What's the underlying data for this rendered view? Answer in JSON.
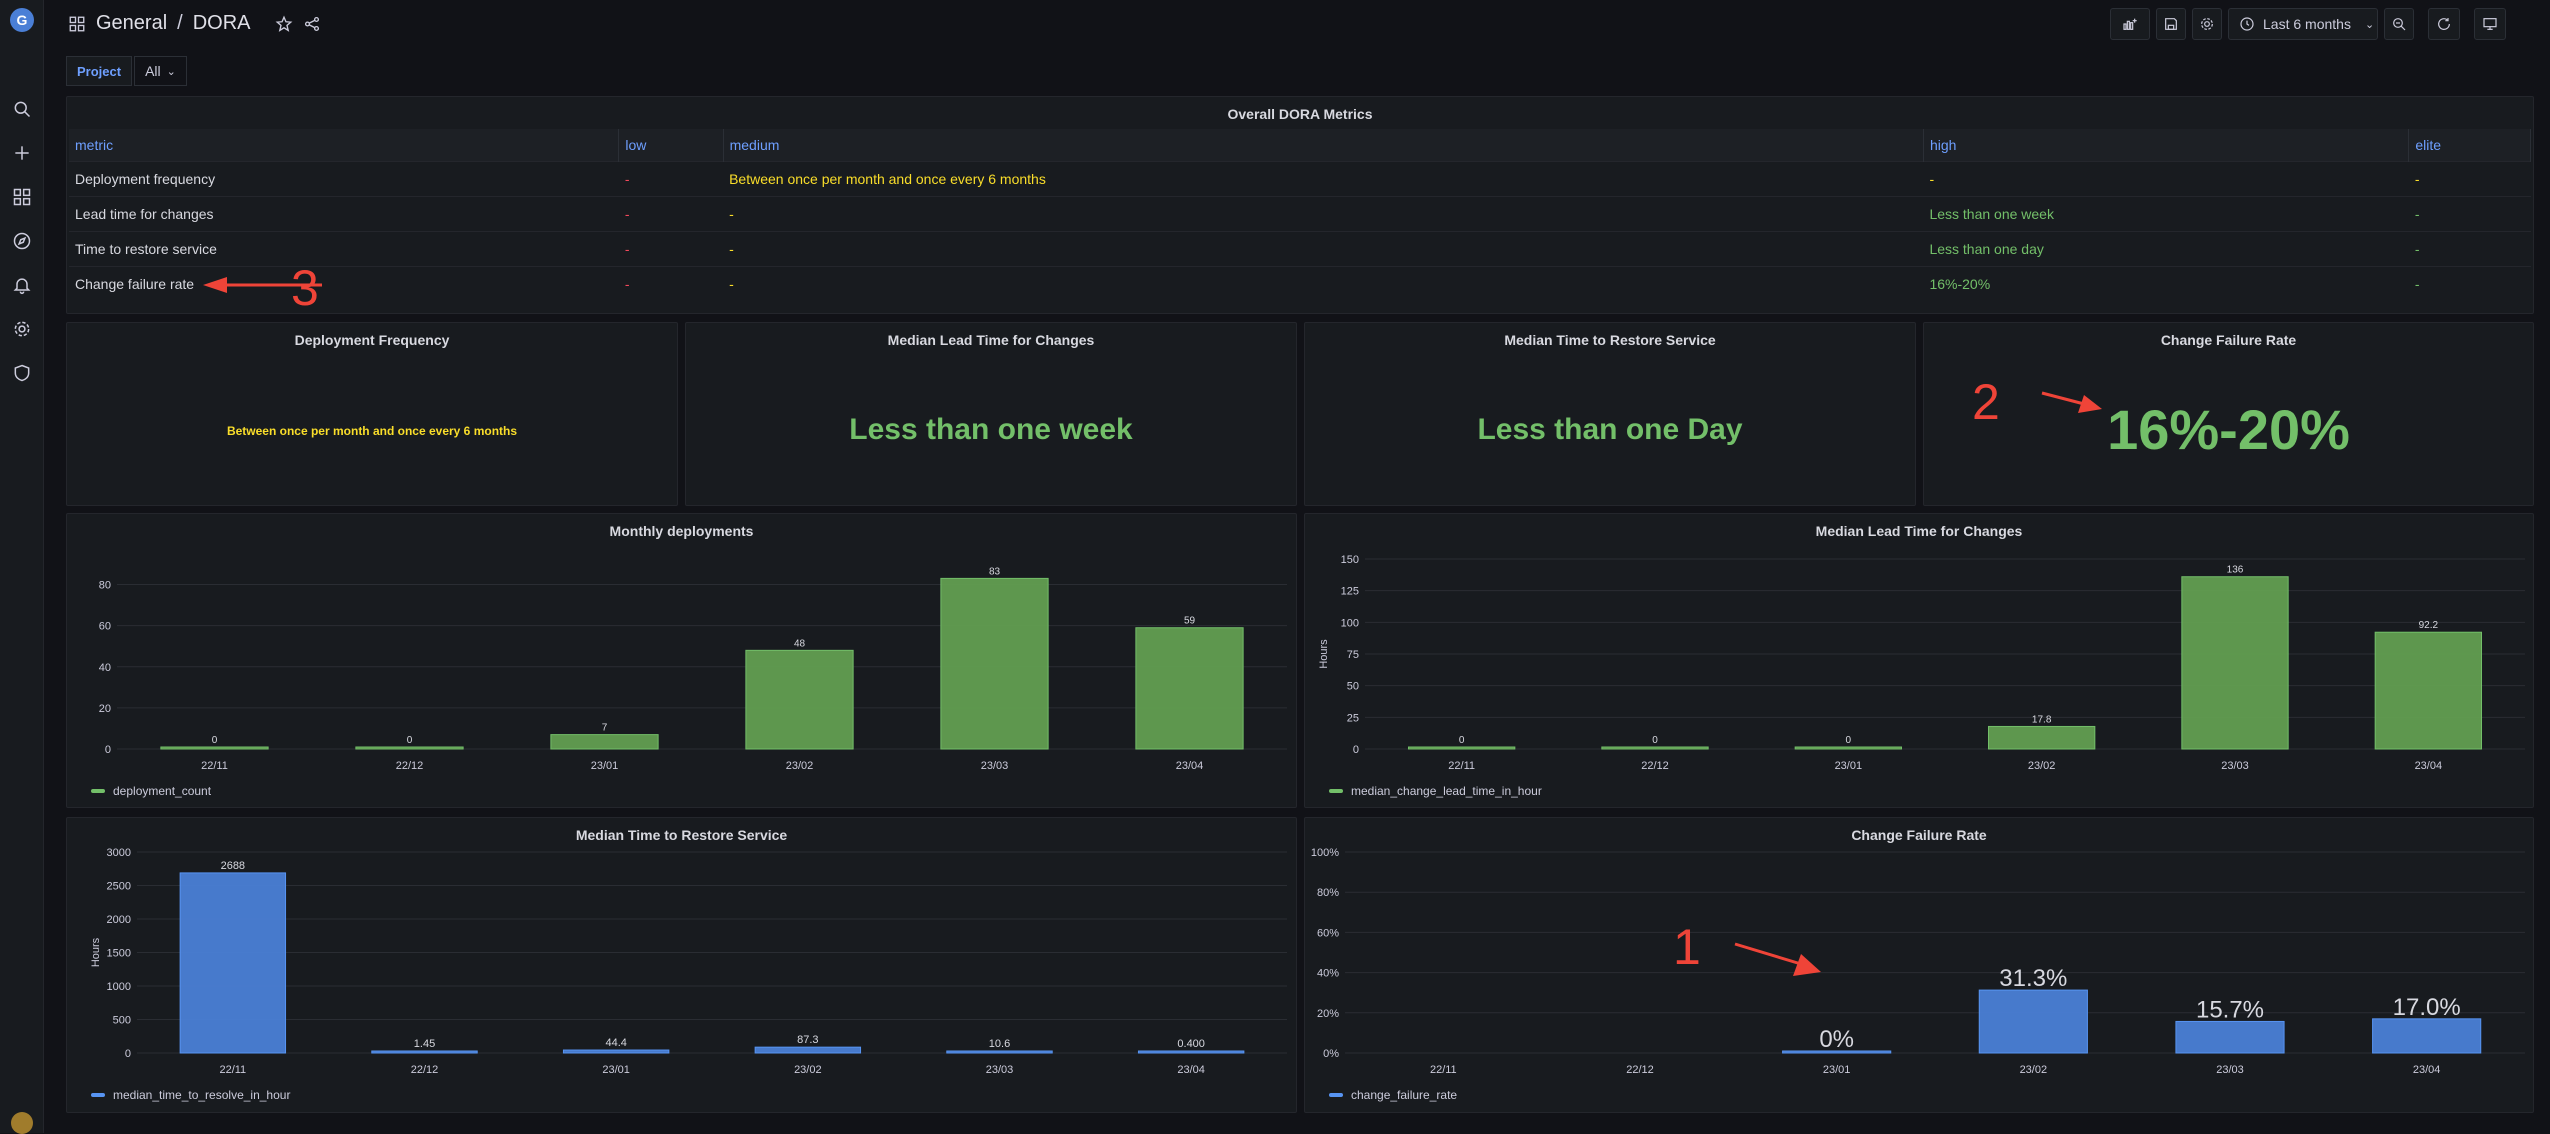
{
  "breadcrumb": {
    "folder": "General",
    "separator": "/",
    "dashboard": "DORA"
  },
  "toolbar": {
    "time_range": "Last 6 months"
  },
  "variables": {
    "label": "Project",
    "value": "All"
  },
  "dora_table": {
    "title": "Overall DORA Metrics",
    "headers": [
      "metric",
      "low",
      "medium",
      "high",
      "elite"
    ],
    "rows": [
      [
        "Deployment frequency",
        "-",
        "Between once per month and once every 6 months",
        "-",
        "-"
      ],
      [
        "Lead time for changes",
        "-",
        "-",
        "Less than one week",
        "-"
      ],
      [
        "Time to restore service",
        "-",
        "-",
        "Less than one day",
        "-"
      ],
      [
        "Change failure rate",
        "-",
        "-",
        "16%-20%",
        "-"
      ]
    ]
  },
  "stats": {
    "deploy_freq": {
      "title": "Deployment Frequency",
      "value": "Between once per month and once every 6 months"
    },
    "lead_time": {
      "title": "Median Lead Time for Changes",
      "value": "Less than one week"
    },
    "restore": {
      "title": "Median Time to Restore Service",
      "value": "Less than one Day"
    },
    "cfr": {
      "title": "Change Failure Rate",
      "value": "16%-20%"
    }
  },
  "annotations": {
    "a1": "1",
    "a2": "2",
    "a3": "3"
  },
  "colors": {
    "green": "#73bf69",
    "blue": "#5794f2",
    "bar_green": "#629e51",
    "bar_blue": "#4a7fd6"
  },
  "chart_data": [
    {
      "type": "bar",
      "title": "Monthly deployments",
      "categories": [
        "22/11",
        "22/12",
        "23/01",
        "23/02",
        "23/03",
        "23/04"
      ],
      "series": [
        {
          "name": "deployment_count",
          "values": [
            0,
            0,
            7,
            48,
            83,
            59
          ]
        }
      ],
      "labels": [
        "0",
        "0",
        "7",
        "48",
        "83",
        "59"
      ],
      "yticks": [
        0,
        20,
        40,
        60,
        80
      ],
      "ylim": [
        0,
        90
      ],
      "ylabel": ""
    },
    {
      "type": "bar",
      "title": "Median Lead Time for Changes",
      "categories": [
        "22/11",
        "22/12",
        "23/01",
        "23/02",
        "23/03",
        "23/04"
      ],
      "series": [
        {
          "name": "median_change_lead_time_in_hour",
          "values": [
            0,
            0,
            0,
            17.8,
            136,
            92.2
          ]
        }
      ],
      "labels": [
        "0",
        "0",
        "0",
        "17.8",
        "136",
        "92.2"
      ],
      "yticks": [
        0,
        25,
        50,
        75,
        100,
        125,
        150
      ],
      "ylim": [
        0,
        150
      ],
      "ylabel": "Hours"
    },
    {
      "type": "bar",
      "title": "Median Time to Restore Service",
      "categories": [
        "22/11",
        "22/12",
        "23/01",
        "23/02",
        "23/03",
        "23/04"
      ],
      "series": [
        {
          "name": "median_time_to_resolve_in_hour",
          "values": [
            2688,
            1.45,
            44.4,
            87.3,
            10.6,
            0.4
          ]
        }
      ],
      "labels": [
        "2688",
        "1.45",
        "44.4",
        "87.3",
        "10.6",
        "0.400"
      ],
      "yticks": [
        0,
        500,
        1000,
        1500,
        2000,
        2500,
        3000
      ],
      "ylim": [
        0,
        3000
      ],
      "ylabel": "Hours"
    },
    {
      "type": "bar",
      "title": "Change Failure Rate",
      "categories": [
        "22/11",
        "22/12",
        "23/01",
        "23/02",
        "23/03",
        "23/04"
      ],
      "series": [
        {
          "name": "change_failure_rate",
          "values": [
            null,
            null,
            0,
            31.3,
            15.7,
            17.0
          ]
        }
      ],
      "labels": [
        "",
        "",
        "0%",
        "31.3%",
        "15.7%",
        "17.0%"
      ],
      "yticks": [
        0,
        20,
        40,
        60,
        80,
        100
      ],
      "ytick_labels": [
        "0%",
        "20%",
        "40%",
        "60%",
        "80%",
        "100%"
      ],
      "ylim": [
        0,
        100
      ],
      "ylabel": ""
    }
  ]
}
